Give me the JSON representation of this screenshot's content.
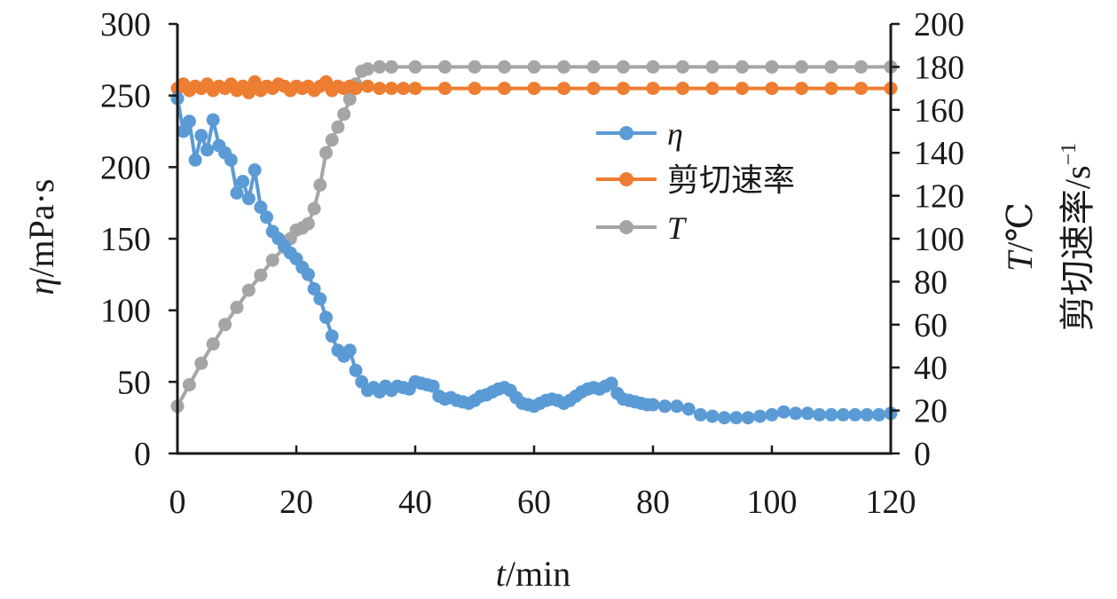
{
  "chart_data": {
    "type": "line",
    "xlabel": {
      "var": "t",
      "unit": "/min"
    },
    "ylabel_left": {
      "var": "η",
      "unit": "/mPa·s"
    },
    "ylabel_right_line1": {
      "var": "T",
      "unit": "/℃"
    },
    "ylabel_right_line2": {
      "text": "剪切速率/s",
      "sup": "−1"
    },
    "xlim": [
      0,
      120
    ],
    "ylim_left": [
      0,
      300
    ],
    "ylim_right": [
      0,
      200
    ],
    "x_ticks": [
      "0",
      "20",
      "40",
      "60",
      "80",
      "100",
      "120"
    ],
    "y_left_ticks": [
      "0",
      "50",
      "100",
      "150",
      "200",
      "250",
      "300"
    ],
    "y_right_ticks": [
      "0",
      "20",
      "40",
      "60",
      "80",
      "100",
      "120",
      "140",
      "160",
      "180",
      "200"
    ],
    "grid": false,
    "legend_position": "center-right",
    "series": [
      {
        "name": "η",
        "italic": true,
        "axis": "left",
        "color": "#5b9bd5",
        "points": [
          [
            0,
            248
          ],
          [
            1,
            225
          ],
          [
            2,
            232
          ],
          [
            3,
            205
          ],
          [
            4,
            222
          ],
          [
            5,
            212
          ],
          [
            6,
            233
          ],
          [
            7,
            215
          ],
          [
            8,
            210
          ],
          [
            9,
            205
          ],
          [
            10,
            182
          ],
          [
            11,
            190
          ],
          [
            12,
            178
          ],
          [
            13,
            198
          ],
          [
            14,
            172
          ],
          [
            15,
            165
          ],
          [
            16,
            155
          ],
          [
            17,
            150
          ],
          [
            18,
            145
          ],
          [
            19,
            140
          ],
          [
            20,
            136
          ],
          [
            21,
            130
          ],
          [
            22,
            125
          ],
          [
            23,
            115
          ],
          [
            24,
            108
          ],
          [
            25,
            95
          ],
          [
            26,
            82
          ],
          [
            27,
            72
          ],
          [
            28,
            68
          ],
          [
            29,
            72
          ],
          [
            30,
            58
          ],
          [
            31,
            50
          ],
          [
            32,
            44
          ],
          [
            33,
            46
          ],
          [
            34,
            43
          ],
          [
            35,
            47
          ],
          [
            36,
            44
          ],
          [
            37,
            47
          ],
          [
            38,
            46
          ],
          [
            39,
            45
          ],
          [
            40,
            50
          ],
          [
            41,
            49
          ],
          [
            42,
            48
          ],
          [
            43,
            47
          ],
          [
            44,
            40
          ],
          [
            45,
            38
          ],
          [
            46,
            39
          ],
          [
            47,
            37
          ],
          [
            48,
            36
          ],
          [
            49,
            35
          ],
          [
            50,
            37
          ],
          [
            51,
            40
          ],
          [
            52,
            41
          ],
          [
            53,
            43
          ],
          [
            54,
            45
          ],
          [
            55,
            46
          ],
          [
            56,
            44
          ],
          [
            57,
            39
          ],
          [
            58,
            35
          ],
          [
            59,
            34
          ],
          [
            60,
            33
          ],
          [
            61,
            35
          ],
          [
            62,
            37
          ],
          [
            63,
            38
          ],
          [
            64,
            37
          ],
          [
            65,
            35
          ],
          [
            66,
            37
          ],
          [
            67,
            40
          ],
          [
            68,
            43
          ],
          [
            69,
            45
          ],
          [
            70,
            46
          ],
          [
            71,
            45
          ],
          [
            72,
            47
          ],
          [
            73,
            49
          ],
          [
            74,
            42
          ],
          [
            75,
            38
          ],
          [
            76,
            37
          ],
          [
            77,
            36
          ],
          [
            78,
            35
          ],
          [
            79,
            34
          ],
          [
            80,
            34
          ],
          [
            82,
            33
          ],
          [
            84,
            33
          ],
          [
            86,
            31
          ],
          [
            88,
            27
          ],
          [
            90,
            26
          ],
          [
            92,
            25
          ],
          [
            94,
            25
          ],
          [
            96,
            25
          ],
          [
            98,
            26
          ],
          [
            100,
            27
          ],
          [
            102,
            29
          ],
          [
            104,
            28
          ],
          [
            106,
            28
          ],
          [
            108,
            27
          ],
          [
            110,
            27
          ],
          [
            112,
            27
          ],
          [
            114,
            27
          ],
          [
            116,
            27
          ],
          [
            118,
            27
          ],
          [
            120,
            28
          ]
        ]
      },
      {
        "name": "剪切速率",
        "italic": false,
        "axis": "right",
        "color": "#ed7d31",
        "points": [
          [
            0,
            170
          ],
          [
            1,
            172
          ],
          [
            2,
            169
          ],
          [
            3,
            171
          ],
          [
            4,
            170
          ],
          [
            5,
            172
          ],
          [
            6,
            169
          ],
          [
            7,
            171
          ],
          [
            8,
            170
          ],
          [
            9,
            172
          ],
          [
            10,
            169
          ],
          [
            11,
            171
          ],
          [
            12,
            168
          ],
          [
            13,
            173
          ],
          [
            14,
            169
          ],
          [
            15,
            171
          ],
          [
            16,
            170
          ],
          [
            17,
            172
          ],
          [
            18,
            171
          ],
          [
            19,
            169
          ],
          [
            20,
            171
          ],
          [
            21,
            170
          ],
          [
            22,
            171
          ],
          [
            23,
            169
          ],
          [
            24,
            171
          ],
          [
            25,
            173
          ],
          [
            26,
            169
          ],
          [
            27,
            171
          ],
          [
            28,
            170
          ],
          [
            29,
            171
          ],
          [
            30,
            170
          ],
          [
            32,
            171
          ],
          [
            34,
            170
          ],
          [
            36,
            170
          ],
          [
            38,
            170
          ],
          [
            40,
            170
          ],
          [
            45,
            170
          ],
          [
            50,
            170
          ],
          [
            55,
            170
          ],
          [
            60,
            170
          ],
          [
            65,
            170
          ],
          [
            70,
            170
          ],
          [
            75,
            170
          ],
          [
            80,
            170
          ],
          [
            85,
            170
          ],
          [
            90,
            170
          ],
          [
            95,
            170
          ],
          [
            100,
            170
          ],
          [
            105,
            170
          ],
          [
            110,
            170
          ],
          [
            115,
            170
          ],
          [
            120,
            170
          ]
        ]
      },
      {
        "name": "T",
        "italic": true,
        "axis": "right",
        "color": "#a5a5a5",
        "points": [
          [
            0,
            22
          ],
          [
            2,
            32
          ],
          [
            4,
            42
          ],
          [
            6,
            51
          ],
          [
            8,
            60
          ],
          [
            10,
            68
          ],
          [
            12,
            76
          ],
          [
            14,
            83
          ],
          [
            16,
            90
          ],
          [
            18,
            96
          ],
          [
            19,
            100
          ],
          [
            20,
            104
          ],
          [
            21,
            105
          ],
          [
            22,
            107
          ],
          [
            23,
            114
          ],
          [
            24,
            125
          ],
          [
            25,
            140
          ],
          [
            26,
            146
          ],
          [
            27,
            152
          ],
          [
            28,
            158
          ],
          [
            29,
            165
          ],
          [
            30,
            172
          ],
          [
            31,
            178
          ],
          [
            32,
            179
          ],
          [
            34,
            180
          ],
          [
            36,
            180
          ],
          [
            40,
            180
          ],
          [
            45,
            180
          ],
          [
            50,
            180
          ],
          [
            55,
            180
          ],
          [
            60,
            180
          ],
          [
            65,
            180
          ],
          [
            70,
            180
          ],
          [
            75,
            180
          ],
          [
            80,
            180
          ],
          [
            85,
            180
          ],
          [
            90,
            180
          ],
          [
            95,
            180
          ],
          [
            100,
            180
          ],
          [
            105,
            180
          ],
          [
            110,
            180
          ],
          [
            115,
            180
          ],
          [
            120,
            180
          ]
        ]
      }
    ]
  }
}
